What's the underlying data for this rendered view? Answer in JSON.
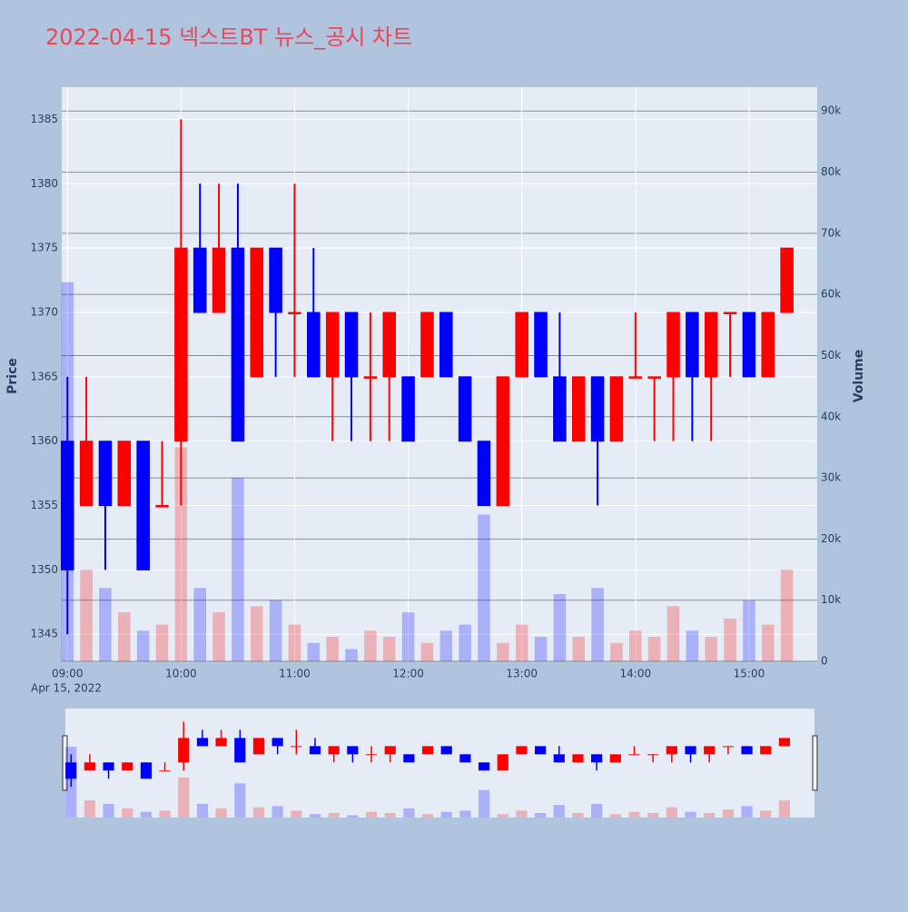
{
  "chart_data": {
    "type": "candlestick",
    "title": "2022-04-15 넥스트BT 뉴스_공시 차트",
    "y_title": "Price",
    "y2_title": "Volume",
    "x_sublabel": "Apr 15, 2022",
    "increasing_color": "#ff0000",
    "decreasing_color": "#0000ff",
    "x": [
      "09:00",
      "09:10",
      "09:20",
      "09:30",
      "09:40",
      "09:50",
      "10:00",
      "10:10",
      "10:20",
      "10:30",
      "10:40",
      "10:50",
      "11:00",
      "11:10",
      "11:20",
      "11:30",
      "11:40",
      "11:50",
      "12:00",
      "12:10",
      "12:20",
      "12:30",
      "12:40",
      "12:50",
      "13:00",
      "13:10",
      "13:20",
      "13:30",
      "13:40",
      "13:50",
      "14:00",
      "14:10",
      "14:20",
      "14:30",
      "14:40",
      "14:50",
      "15:00",
      "15:10",
      "15:20"
    ],
    "open": [
      1360,
      1355,
      1360,
      1355,
      1360,
      1355,
      1360,
      1375,
      1370,
      1375,
      1365,
      1375,
      1370,
      1370,
      1365,
      1370,
      1365,
      1365,
      1365,
      1365,
      1370,
      1365,
      1360,
      1355,
      1365,
      1370,
      1365,
      1360,
      1365,
      1360,
      1365,
      1365,
      1365,
      1370,
      1365,
      1370,
      1370,
      1365,
      1370
    ],
    "high": [
      1365,
      1365,
      1360,
      1360,
      1360,
      1360,
      1385,
      1380,
      1380,
      1380,
      1375,
      1375,
      1380,
      1375,
      1370,
      1370,
      1370,
      1370,
      1365,
      1370,
      1370,
      1365,
      1360,
      1365,
      1370,
      1370,
      1370,
      1365,
      1365,
      1365,
      1370,
      1365,
      1370,
      1370,
      1370,
      1370,
      1370,
      1370,
      1375
    ],
    "low": [
      1345,
      1355,
      1350,
      1355,
      1350,
      1355,
      1355,
      1370,
      1370,
      1360,
      1365,
      1365,
      1365,
      1365,
      1360,
      1360,
      1360,
      1360,
      1360,
      1365,
      1365,
      1360,
      1355,
      1355,
      1365,
      1365,
      1360,
      1360,
      1355,
      1360,
      1365,
      1360,
      1360,
      1360,
      1360,
      1365,
      1365,
      1365,
      1370
    ],
    "close": [
      1350,
      1360,
      1355,
      1360,
      1350,
      1355,
      1375,
      1370,
      1375,
      1360,
      1375,
      1370,
      1370,
      1365,
      1370,
      1365,
      1365,
      1370,
      1360,
      1370,
      1365,
      1360,
      1355,
      1365,
      1370,
      1365,
      1360,
      1365,
      1360,
      1365,
      1365,
      1365,
      1370,
      1365,
      1370,
      1370,
      1365,
      1370,
      1375
    ],
    "volume": [
      62000,
      15000,
      12000,
      8000,
      5000,
      6000,
      35000,
      12000,
      8000,
      30000,
      9000,
      10000,
      6000,
      3000,
      4000,
      2000,
      5000,
      4000,
      8000,
      3000,
      5000,
      6000,
      24000,
      3000,
      6000,
      4000,
      11000,
      4000,
      12000,
      3000,
      5000,
      4000,
      9000,
      5000,
      4000,
      7000,
      10000,
      6000,
      15000
    ],
    "xlim": [
      "08:57",
      "15:36"
    ],
    "xticks": [
      "09:00",
      "10:00",
      "11:00",
      "12:00",
      "13:00",
      "14:00",
      "15:00"
    ],
    "ylim": [
      1342.9,
      1387.5
    ],
    "yticks": [
      1345,
      1350,
      1355,
      1360,
      1365,
      1370,
      1375,
      1380,
      1385
    ],
    "y2lim": [
      0,
      93900
    ],
    "y2ticks": [
      0,
      {
        "value": 10000,
        "label": "10k"
      },
      {
        "value": 20000,
        "label": "20k"
      },
      {
        "value": 30000,
        "label": "30k"
      },
      {
        "value": 40000,
        "label": "40k"
      },
      {
        "value": 50000,
        "label": "50k"
      },
      {
        "value": 60000,
        "label": "60k"
      },
      {
        "value": 70000,
        "label": "70k"
      },
      {
        "value": 80000,
        "label": "80k"
      },
      {
        "value": 90000,
        "label": "90k"
      }
    ],
    "grid": true,
    "rangeslider": true
  }
}
